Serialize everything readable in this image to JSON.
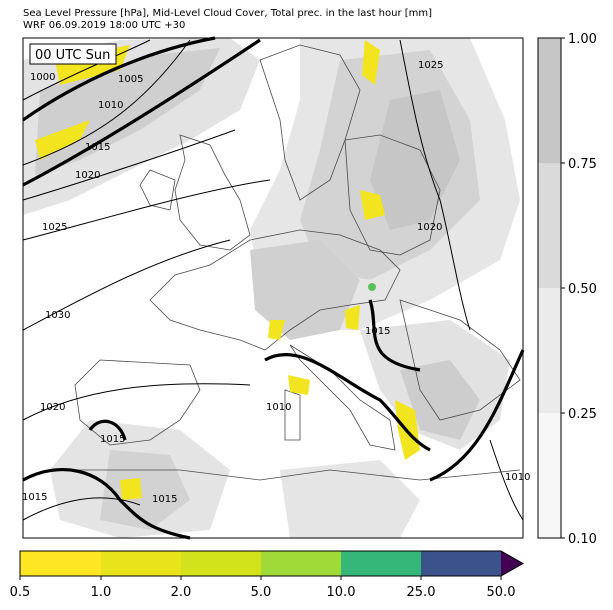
{
  "header": {
    "title_line1": "Sea Level Pressure [hPa], Mid-Level Cloud Cover, Total prec. in the last hour [mm]",
    "title_line2": "WRF 06.09.2019 18:00 UTC +30"
  },
  "map": {
    "time_badge": "00 UTC Sun",
    "isobar_labels": [
      "1000",
      "1005",
      "1010",
      "1015",
      "1020",
      "1025",
      "1030",
      "1025",
      "1020",
      "1015",
      "1020",
      "1010",
      "1015",
      "1015",
      "1015",
      "1010"
    ],
    "colors": {
      "land": "#ffffff",
      "sea": "#ffffff",
      "coast": "#4a4a4a",
      "isobar": "#000000",
      "cloud_light": "#e6e6e6",
      "cloud_mid": "#d3d3d3",
      "cloud_dark": "#c6c6c6",
      "precip_yellow": "#f2e41e",
      "precip_green": "#57c25a"
    }
  },
  "cloud_colorbar": {
    "tick_labels": [
      "1.00",
      "0.75",
      "0.50",
      "0.25",
      "0.10"
    ],
    "colors": [
      "#c6c6c6",
      "#dadada",
      "#ebebeb",
      "#f7f7f7"
    ]
  },
  "precip_colorbar": {
    "tick_labels": [
      "0.5",
      "1.0",
      "2.0",
      "5.0",
      "10.0",
      "25.0",
      "50.0"
    ],
    "colors": [
      "#fde725",
      "#e8e31a",
      "#d2e21b",
      "#a0da39",
      "#35b779",
      "#3b528b",
      "#440154"
    ]
  }
}
